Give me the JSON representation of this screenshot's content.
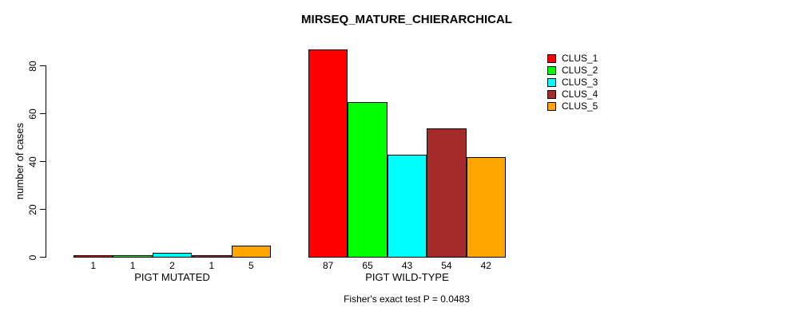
{
  "title": "MIRSEQ_MATURE_CHIERARCHICAL",
  "footer": "Fisher's exact test P = 0.0483",
  "chart_data": {
    "type": "bar",
    "title": "MIRSEQ_MATURE_CHIERARCHICAL",
    "xlabel": "",
    "ylabel": "number of cases",
    "ylim": [
      0,
      87
    ],
    "y_ticks": [
      0,
      20,
      40,
      60,
      80
    ],
    "grid": false,
    "categories": [
      "PIGT MUTATED",
      "PIGT WILD-TYPE"
    ],
    "series": [
      {
        "name": "CLUS_1",
        "color": "#ff0000",
        "values": [
          1,
          87
        ]
      },
      {
        "name": "CLUS_2",
        "color": "#00ff00",
        "values": [
          1,
          65
        ]
      },
      {
        "name": "CLUS_3",
        "color": "#00ffff",
        "values": [
          2,
          43
        ]
      },
      {
        "name": "CLUS_4",
        "color": "#a52a2a",
        "values": [
          1,
          54
        ]
      },
      {
        "name": "CLUS_5",
        "color": "#ffa500",
        "values": [
          5,
          42
        ]
      }
    ],
    "groups": [
      {
        "label": "PIGT MUTATED",
        "values": [
          1,
          1,
          2,
          1,
          5
        ]
      },
      {
        "label": "PIGT WILD-TYPE",
        "values": [
          87,
          65,
          43,
          54,
          42
        ]
      }
    ],
    "bar_value_labels": [
      [
        "1",
        "1",
        "2",
        "1",
        "5"
      ],
      [
        "87",
        "65",
        "43",
        "54",
        "42"
      ]
    ],
    "legend": {
      "position": "top-right",
      "entries": [
        {
          "label": "CLUS_1",
          "color": "#ff0000"
        },
        {
          "label": "CLUS_2",
          "color": "#00ff00"
        },
        {
          "label": "CLUS_3",
          "color": "#00ffff"
        },
        {
          "label": "CLUS_4",
          "color": "#a52a2a"
        },
        {
          "label": "CLUS_5",
          "color": "#ffa500"
        }
      ]
    },
    "annotation": "Fisher's exact test P = 0.0483"
  },
  "layout_colors": {
    "background": "#ffffff",
    "axis": "#000000",
    "text": "#000000"
  }
}
